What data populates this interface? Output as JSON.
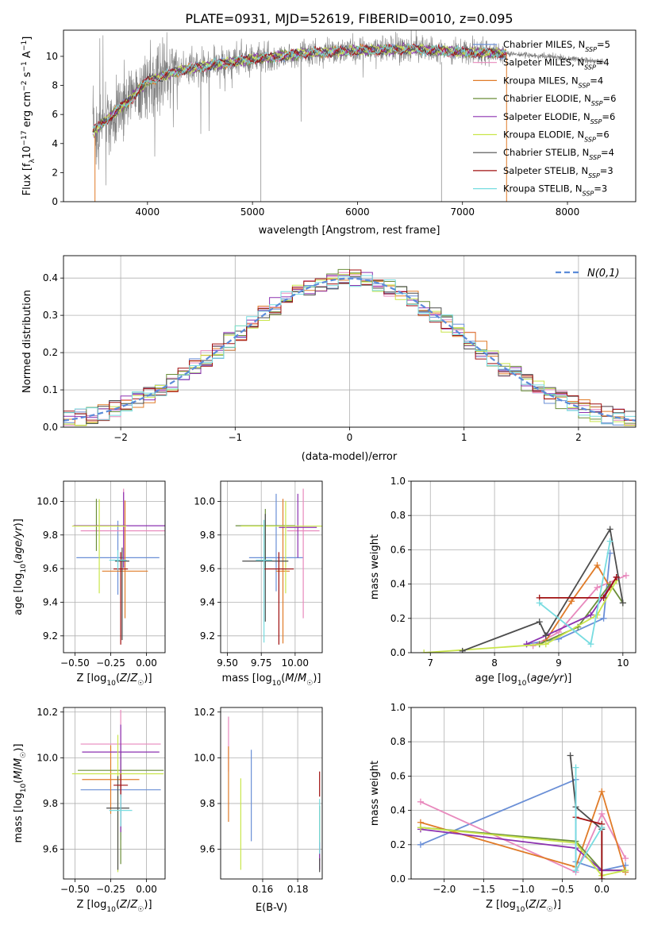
{
  "figure": {
    "title": "PLATE=0931, MJD=52619, FIBERID=0010, z=0.095"
  },
  "colors": {
    "grid": "#b0b0b0",
    "data_grey": "#808080",
    "normal_curve": "#5b8bd9"
  },
  "series": [
    {
      "name": "Chabrier MILES, N_SSP=5",
      "label_main": "Chabrier MILES, N",
      "label_sub": "SSP",
      "label_tail": "=5",
      "color": "#6a8fd6"
    },
    {
      "name": "Salpeter MILES, N_SSP=4",
      "label_main": "Salpeter MILES, N",
      "label_sub": "SSP",
      "label_tail": "=4",
      "color": "#e889bd"
    },
    {
      "name": "Kroupa MILES, N_SSP=4",
      "label_main": "Kroupa MILES, N",
      "label_sub": "SSP",
      "label_tail": "=4",
      "color": "#e07b28"
    },
    {
      "name": "Chabrier ELODIE, N_SSP=6",
      "label_main": "Chabrier ELODIE, N",
      "label_sub": "SSP",
      "label_tail": "=6",
      "color": "#6b8e3a"
    },
    {
      "name": "Salpeter ELODIE, N_SSP=6",
      "label_main": "Salpeter ELODIE, N",
      "label_sub": "SSP",
      "label_tail": "=6",
      "color": "#8c32b0"
    },
    {
      "name": "Kroupa ELODIE, N_SSP=6",
      "label_main": "Kroupa ELODIE, N",
      "label_sub": "SSP",
      "label_tail": "=6",
      "color": "#c9e54a"
    },
    {
      "name": "Chabrier STELIB, N_SSP=4",
      "label_main": "Chabrier STELIB, N",
      "label_sub": "SSP",
      "label_tail": "=4",
      "color": "#4d4d4d"
    },
    {
      "name": "Salpeter STELIB, N_SSP=3",
      "label_main": "Salpeter STELIB, N",
      "label_sub": "SSP",
      "label_tail": "=3",
      "color": "#a01010"
    },
    {
      "name": "Kroupa STELIB, N_SSP=3",
      "label_main": "Kroupa STELIB, N",
      "label_sub": "SSP",
      "label_tail": "=3",
      "color": "#77dce0"
    }
  ],
  "chart_data": [
    {
      "id": "spectrum",
      "type": "line",
      "xlabel": "wavelength [Angstrom, rest frame]",
      "ylabel": "Flux [f_λ 10^-17 erg cm^-2 s^-1 A^-1]",
      "ylabel_parts": {
        "a": "Flux [f",
        "b": "λ",
        "c": "10",
        "d": "−17",
        "e": " erg cm",
        "f": "−2",
        "g": " s",
        "h": "−1",
        "i": " A",
        "j": "−1",
        "k": "]"
      },
      "xlim": [
        3200,
        8650
      ],
      "ylim": [
        0,
        11.8
      ],
      "xticks": [
        4000,
        5000,
        6000,
        7000,
        8000
      ],
      "yticks": [
        0,
        2,
        4,
        6,
        8,
        10
      ],
      "data_range": [
        3480,
        8350
      ],
      "model_range": [
        3480,
        7420
      ],
      "continuum": {
        "x": [
          3480,
          3600,
          3800,
          4000,
          4300,
          4600,
          5000,
          5500,
          6000,
          6500,
          7000,
          7400,
          7800,
          8350
        ],
        "y": [
          4.8,
          5.6,
          6.8,
          8.3,
          9.0,
          9.4,
          9.8,
          10.2,
          10.4,
          10.5,
          10.3,
          10.2,
          10.0,
          9.6
        ]
      },
      "legend_position": "upper right"
    },
    {
      "id": "residual-histogram",
      "type": "step",
      "xlabel": "(data-model)/error",
      "ylabel": "Normed distribution",
      "xlim": [
        -2.5,
        2.5
      ],
      "ylim": [
        0,
        0.46
      ],
      "xticks": [
        -2,
        -1,
        0,
        1,
        2
      ],
      "yticks": [
        0.0,
        0.1,
        0.2,
        0.3,
        0.4
      ],
      "bin_width": 0.1,
      "grid": true,
      "normal_label": "N(0,1)",
      "legend_position": "upper right"
    },
    {
      "id": "age-vs-Z",
      "type": "errorbar",
      "xlabel": "Z [log10(Z/Z☉)]",
      "ylabel": "age [log10(age/yr)]",
      "xlim": [
        -0.58,
        0.13
      ],
      "ylim": [
        9.1,
        10.12
      ],
      "xticks": [
        -0.5,
        -0.25,
        0.0
      ],
      "xtick_labels": [
        "−0.50",
        "−0.25",
        "0.00"
      ],
      "yticks": [
        9.2,
        9.4,
        9.6,
        9.8,
        10.0
      ],
      "grid": true,
      "points": [
        {
          "series": 0,
          "x": -0.2,
          "y": 9.665,
          "xerr": 0.29,
          "yerr": [
            0.22,
            0.22
          ]
        },
        {
          "series": 1,
          "x": -0.16,
          "y": 9.825,
          "xerr": 0.3,
          "yerr": [
            0.22,
            0.25
          ]
        },
        {
          "series": 2,
          "x": -0.15,
          "y": 9.585,
          "xerr": 0.16,
          "yerr": [
            0.28,
            0.42
          ]
        },
        {
          "series": 3,
          "x": -0.35,
          "y": 9.855,
          "xerr": 0.15,
          "yerr": [
            0.15,
            0.16
          ]
        },
        {
          "series": 4,
          "x": -0.16,
          "y": 9.855,
          "xerr": 0.35,
          "yerr": [
            0.25,
            0.2
          ]
        },
        {
          "series": 5,
          "x": -0.33,
          "y": 9.853,
          "xerr": 0.19,
          "yerr": [
            0.4,
            0.16
          ]
        },
        {
          "series": 6,
          "x": -0.17,
          "y": 9.645,
          "xerr": 0.05,
          "yerr": [
            0.47,
            0.08
          ]
        },
        {
          "series": 7,
          "x": -0.18,
          "y": 9.598,
          "xerr": 0.05,
          "yerr": [
            0.45,
            0.1
          ]
        },
        {
          "series": 8,
          "x": -0.2,
          "y": 9.65,
          "xerr": 0.06,
          "yerr": [
            0.06,
            0.06
          ]
        }
      ]
    },
    {
      "id": "age-vs-mass",
      "type": "errorbar",
      "xlabel": "mass [log10(M/M☉)]",
      "ylabel": "",
      "xlim": [
        9.45,
        10.2
      ],
      "ylim": [
        9.1,
        10.12
      ],
      "xticks": [
        9.5,
        9.75,
        10.0
      ],
      "xtick_labels": [
        "9.50",
        "9.75",
        "10.00"
      ],
      "yticks": [
        9.2,
        9.4,
        9.6,
        9.8,
        10.0
      ],
      "grid": true,
      "points": [
        {
          "series": 0,
          "x": 9.86,
          "y": 9.665,
          "xerr": 0.2,
          "yerr": [
            0.2,
            0.38
          ]
        },
        {
          "series": 1,
          "x": 10.06,
          "y": 9.825,
          "xerr": 0.12,
          "yerr": [
            0.52,
            0.25
          ]
        },
        {
          "series": 2,
          "x": 9.91,
          "y": 9.585,
          "xerr": 0.05,
          "yerr": [
            0.43,
            0.43
          ]
        },
        {
          "series": 3,
          "x": 9.78,
          "y": 9.855,
          "xerr": 0.22,
          "yerr": [
            0.25,
            0.1
          ]
        },
        {
          "series": 4,
          "x": 10.02,
          "y": 9.845,
          "xerr": 0.14,
          "yerr": [
            0.18,
            0.2
          ]
        },
        {
          "series": 5,
          "x": 9.93,
          "y": 9.853,
          "xerr": 0.33,
          "yerr": [
            0.4,
            0.15
          ]
        },
        {
          "series": 6,
          "x": 9.78,
          "y": 9.645,
          "xerr": 0.17,
          "yerr": [
            0.36,
            0.28
          ]
        },
        {
          "series": 7,
          "x": 9.88,
          "y": 9.598,
          "xerr": 0.11,
          "yerr": [
            0.45,
            0.1
          ]
        },
        {
          "series": 8,
          "x": 9.77,
          "y": 9.65,
          "xerr": 0.06,
          "yerr": [
            0.49,
            0.24
          ]
        }
      ]
    },
    {
      "id": "mass-weight-vs-age",
      "type": "line",
      "xlabel": "age [log10(age/yr)]",
      "ylabel": "mass weight",
      "xlim": [
        6.7,
        10.2
      ],
      "ylim": [
        0,
        1
      ],
      "xticks": [
        7,
        8,
        9,
        10
      ],
      "yticks": [
        0.0,
        0.2,
        0.4,
        0.6,
        0.8,
        1.0
      ],
      "grid": true,
      "lines": [
        {
          "series": 0,
          "x": [
            8.5,
            9.0,
            9.7,
            9.8
          ],
          "y": [
            0.05,
            0.08,
            0.2,
            0.58
          ]
        },
        {
          "series": 1,
          "x": [
            8.6,
            9.0,
            9.6,
            10.05
          ],
          "y": [
            0.04,
            0.12,
            0.38,
            0.45
          ]
        },
        {
          "series": 2,
          "x": [
            8.8,
            9.2,
            9.6,
            9.8
          ],
          "y": [
            0.07,
            0.3,
            0.51,
            0.38
          ]
        },
        {
          "series": 3,
          "x": [
            8.7,
            9.3,
            9.8,
            10.0
          ],
          "y": [
            0.05,
            0.15,
            0.4,
            0.29
          ]
        },
        {
          "series": 4,
          "x": [
            8.5,
            8.8,
            9.5,
            9.9
          ],
          "y": [
            0.05,
            0.1,
            0.22,
            0.44
          ]
        },
        {
          "series": 5,
          "x": [
            6.9,
            8.8,
            9.6,
            9.9
          ],
          "y": [
            0.0,
            0.05,
            0.22,
            0.42
          ]
        },
        {
          "series": 6,
          "x": [
            7.5,
            8.7,
            8.8,
            9.8,
            10.0
          ],
          "y": [
            0.01,
            0.18,
            0.1,
            0.72,
            0.29
          ]
        },
        {
          "series": 7,
          "x": [
            8.7,
            9.7,
            9.9
          ],
          "y": [
            0.32,
            0.32,
            0.44
          ]
        },
        {
          "series": 8,
          "x": [
            8.7,
            9.5,
            9.8
          ],
          "y": [
            0.29,
            0.05,
            0.65
          ]
        }
      ]
    },
    {
      "id": "mass-vs-Z",
      "type": "errorbar",
      "xlabel": "Z [log10(Z/Z☉)]",
      "ylabel": "mass [log10(M/M☉)]",
      "xlim": [
        -0.58,
        0.13
      ],
      "ylim": [
        9.47,
        10.22
      ],
      "xticks": [
        -0.5,
        -0.25,
        0.0
      ],
      "xtick_labels": [
        "−0.50",
        "−0.25",
        "0.00"
      ],
      "yticks": [
        9.6,
        9.8,
        10.0,
        10.2
      ],
      "grid": true,
      "points": [
        {
          "series": 0,
          "x": -0.18,
          "y": 9.86,
          "xerr": 0.28,
          "yerr": [
            0.22,
            0.2
          ]
        },
        {
          "series": 1,
          "x": -0.18,
          "y": 10.06,
          "xerr": 0.28,
          "yerr": [
            0.3,
            0.15
          ]
        },
        {
          "series": 2,
          "x": -0.25,
          "y": 9.905,
          "xerr": 0.2,
          "yerr": [
            0.15,
            0.15
          ]
        },
        {
          "series": 3,
          "x": -0.18,
          "y": 9.945,
          "xerr": 0.3,
          "yerr": [
            0.41,
            0.08
          ]
        },
        {
          "series": 4,
          "x": -0.18,
          "y": 10.025,
          "xerr": 0.27,
          "yerr": [
            0.35,
            0.12
          ]
        },
        {
          "series": 5,
          "x": -0.2,
          "y": 9.93,
          "xerr": 0.32,
          "yerr": [
            0.43,
            0.17
          ]
        },
        {
          "series": 6,
          "x": -0.2,
          "y": 9.78,
          "xerr": 0.08,
          "yerr": [
            0.27,
            0.14
          ]
        },
        {
          "series": 7,
          "x": -0.18,
          "y": 9.88,
          "xerr": 0.05,
          "yerr": [
            0.05,
            0.05
          ]
        },
        {
          "series": 8,
          "x": -0.18,
          "y": 9.77,
          "xerr": 0.08,
          "yerr": [
            0.07,
            0.07
          ]
        }
      ]
    },
    {
      "id": "mass-vs-EBV",
      "type": "errorbar",
      "xlabel": "E(B-V)",
      "ylabel": "",
      "xlim": [
        0.136,
        0.194
      ],
      "ylim": [
        9.47,
        10.22
      ],
      "xticks": [
        0.16,
        0.18
      ],
      "xtick_labels": [
        "0.16",
        "0.18"
      ],
      "yticks": [
        9.6,
        9.8,
        10.0,
        10.2
      ],
      "grid": true,
      "points": [
        {
          "series": 0,
          "x": 0.1535,
          "y": 9.835,
          "xerr": 0,
          "yerr": [
            0.2,
            0.2
          ]
        },
        {
          "series": 1,
          "x": 0.1405,
          "y": 10.06,
          "xerr": 0,
          "yerr": [
            0.12,
            0.12
          ]
        },
        {
          "series": 2,
          "x": 0.1405,
          "y": 9.88,
          "xerr": 0,
          "yerr": [
            0.16,
            0.17
          ]
        },
        {
          "series": 3,
          "x": 0.1925,
          "y": 9.67,
          "xerr": 0,
          "yerr": [
            0.12,
            0.12
          ]
        },
        {
          "series": 4,
          "x": 0.1925,
          "y": 9.57,
          "xerr": 0,
          "yerr": [
            0.06,
            0.06
          ]
        },
        {
          "series": 5,
          "x": 0.1475,
          "y": 9.71,
          "xerr": 0,
          "yerr": [
            0.2,
            0.2
          ]
        },
        {
          "series": 6,
          "x": 0.1925,
          "y": 9.53,
          "xerr": 0,
          "yerr": [
            0.03,
            0.03
          ]
        },
        {
          "series": 7,
          "x": 0.1925,
          "y": 9.885,
          "xerr": 0,
          "yerr": [
            0.055,
            0.055
          ]
        },
        {
          "series": 8,
          "x": 0.1925,
          "y": 9.7,
          "xerr": 0,
          "yerr": [
            0.12,
            0.12
          ]
        }
      ]
    },
    {
      "id": "mass-weight-vs-Z",
      "type": "line",
      "xlabel": "Z [log10(Z/Z☉)]",
      "ylabel": "mass weight",
      "xlim": [
        -2.42,
        0.43
      ],
      "ylim": [
        0,
        1
      ],
      "xticks": [
        -2.0,
        -1.5,
        -1.0,
        -0.5,
        0.0
      ],
      "xtick_labels": [
        "−2.0",
        "−1.5",
        "−1.0",
        "−0.5",
        "0.0"
      ],
      "yticks": [
        0.0,
        0.2,
        0.4,
        0.6,
        0.8,
        1.0
      ],
      "grid": true,
      "lines": [
        {
          "series": 0,
          "x": [
            -2.3,
            -0.33,
            -0.33,
            0.0,
            0.3
          ],
          "y": [
            0.2,
            0.58,
            0.1,
            0.05,
            0.08
          ]
        },
        {
          "series": 1,
          "x": [
            -2.3,
            -0.33,
            0.0,
            0.3
          ],
          "y": [
            0.45,
            0.04,
            0.38,
            0.12
          ]
        },
        {
          "series": 2,
          "x": [
            -2.3,
            -0.33,
            0.0,
            0.3
          ],
          "y": [
            0.33,
            0.07,
            0.51,
            0.04
          ]
        },
        {
          "series": 3,
          "x": [
            -2.3,
            -0.33,
            0.0,
            0.3
          ],
          "y": [
            0.3,
            0.22,
            0.05,
            0.05
          ]
        },
        {
          "series": 4,
          "x": [
            -2.3,
            -0.33,
            0.0,
            0.3
          ],
          "y": [
            0.29,
            0.18,
            0.05,
            0.05
          ]
        },
        {
          "series": 5,
          "x": [
            -2.3,
            -0.33,
            0.0,
            0.3
          ],
          "y": [
            0.3,
            0.21,
            0.02,
            0.05
          ]
        },
        {
          "series": 6,
          "x": [
            -0.4,
            -0.33,
            0.0,
            0.0
          ],
          "y": [
            0.72,
            0.42,
            0.29,
            0.0
          ]
        },
        {
          "series": 7,
          "x": [
            -0.33,
            0.0,
            0.0
          ],
          "y": [
            0.36,
            0.32,
            0.0
          ]
        },
        {
          "series": 8,
          "x": [
            -0.33,
            -0.33,
            0.0
          ],
          "y": [
            0.65,
            0.05,
            0.3
          ]
        }
      ]
    }
  ]
}
